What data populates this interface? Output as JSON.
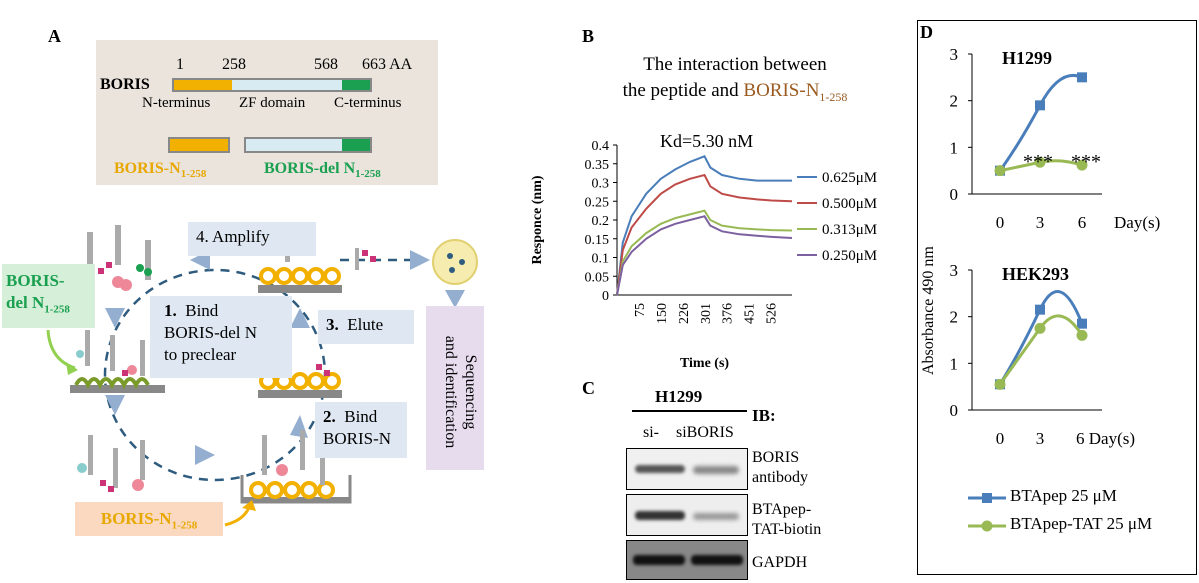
{
  "panelA": {
    "label": "A",
    "boris": {
      "name": "BORIS",
      "pos1": "1",
      "pos258": "258",
      "pos568": "568",
      "pos663": "663 AA",
      "nterm": "N-terminus",
      "zf": "ZF domain",
      "cterm": "C-terminus"
    },
    "frag_n": {
      "base": "BORIS-N",
      "sub": "1-258"
    },
    "frag_del": {
      "base": "BORIS-del N",
      "sub": "1-258"
    },
    "steps": {
      "amplify": "4.  Amplify",
      "bind1_num": "1.",
      "bind1_l1": "Bind",
      "bind1_l2": "BORIS-del N",
      "bind1_l3": "to preclear",
      "elute": "3.  Elute",
      "bind2_num": "2.",
      "bind2_l1": "Bind",
      "bind2_l2": "BORIS-N",
      "seq_l1": "Sequencing",
      "seq_l2": "and identification"
    },
    "side_del": {
      "l1": "BORIS-",
      "l2": "del N",
      "sub": "1-258"
    },
    "side_n": {
      "base": "BORIS-N",
      "sub": "1-258"
    }
  },
  "panelB": {
    "label": "B",
    "title_l1": "The interaction between",
    "title_l2_pre": "the peptide and ",
    "title_l2_colored": "BORIS-N",
    "title_sub": "1-258",
    "kd": "Kd=5.30 nM",
    "ylabel": "Responce (nm)",
    "xlabel": "Time (s)"
  },
  "panelC": {
    "label": "C",
    "cell": "H1299",
    "lane1": "si-",
    "lane2": "siBORIS",
    "ib": "IB:",
    "blot1": {
      "l1": "BORIS",
      "l2": "antibody"
    },
    "blot2": {
      "l1": "BTApep-",
      "l2": "TAT-biotin"
    },
    "blot3": {
      "l1": "GAPDH"
    }
  },
  "panelD": {
    "label": "D",
    "ylabel": "Absorbance 490 nm",
    "top_title": "H1299",
    "bottom_title": "HEK293",
    "stars": "***",
    "xunit": "Day(s)",
    "xunit_bottom": "6 Day(s)",
    "legend1": "BTApep 25 μM",
    "legend2": "BTApep-TAT 25 μM"
  },
  "chart_data": [
    {
      "type": "line",
      "panel": "B",
      "title": "The interaction between the peptide and BORIS-N1-258",
      "xlabel": "Time (s)",
      "ylabel": "Responce (nm)",
      "ylim": [
        0,
        0.4
      ],
      "yticks": [
        "0",
        "0.05",
        "0.1",
        "0.15",
        "0.2",
        "0.25",
        "0.3",
        "0.35",
        "0.4"
      ],
      "xticks": [
        "75",
        "150",
        "226",
        "301",
        "376",
        "451",
        "526"
      ],
      "xlim": [
        0,
        600
      ],
      "grid": false,
      "legend": "right",
      "series": [
        {
          "name": "0.625μM",
          "color": "#4a7ebb",
          "x": [
            0,
            20,
            50,
            100,
            150,
            200,
            250,
            300,
            320,
            360,
            420,
            480,
            530,
            600
          ],
          "values": [
            0,
            0.14,
            0.21,
            0.27,
            0.31,
            0.335,
            0.355,
            0.37,
            0.34,
            0.32,
            0.31,
            0.305,
            0.305,
            0.305
          ]
        },
        {
          "name": "0.500μM",
          "color": "#be4b48",
          "x": [
            0,
            20,
            50,
            100,
            150,
            200,
            250,
            300,
            320,
            360,
            420,
            480,
            530,
            600
          ],
          "values": [
            0,
            0.12,
            0.18,
            0.23,
            0.27,
            0.295,
            0.31,
            0.32,
            0.29,
            0.27,
            0.26,
            0.255,
            0.252,
            0.25
          ]
        },
        {
          "name": "0.313μM",
          "color": "#98b954",
          "x": [
            0,
            20,
            50,
            100,
            150,
            200,
            250,
            300,
            320,
            360,
            420,
            480,
            530,
            600
          ],
          "values": [
            0,
            0.09,
            0.13,
            0.165,
            0.19,
            0.205,
            0.215,
            0.225,
            0.2,
            0.185,
            0.178,
            0.175,
            0.173,
            0.172
          ]
        },
        {
          "name": "0.250μM",
          "color": "#7d60a0",
          "x": [
            0,
            20,
            50,
            100,
            150,
            200,
            250,
            300,
            320,
            360,
            420,
            480,
            530,
            600
          ],
          "values": [
            0,
            0.08,
            0.115,
            0.15,
            0.175,
            0.19,
            0.2,
            0.21,
            0.185,
            0.17,
            0.162,
            0.158,
            0.155,
            0.152
          ]
        }
      ]
    },
    {
      "type": "line",
      "panel": "D-top",
      "title": "H1299",
      "xlabel": "Day(s)",
      "ylabel": "Absorbance 490 nm",
      "ylim": [
        0,
        3
      ],
      "yticks": [
        "0",
        "1",
        "2",
        "3"
      ],
      "xticks": [
        "0",
        "3",
        "6"
      ],
      "categories": [
        "0",
        "3",
        "6"
      ],
      "series": [
        {
          "name": "BTApep 25 μM",
          "color": "#4a7ebb",
          "values": [
            0.5,
            1.9,
            2.5
          ]
        },
        {
          "name": "BTApep-TAT 25 μM",
          "color": "#98b954",
          "values": [
            0.5,
            0.68,
            0.62
          ]
        }
      ]
    },
    {
      "type": "line",
      "panel": "D-bottom",
      "title": "HEK293",
      "xlabel": "Day(s)",
      "ylabel": "Absorbance 490 nm",
      "ylim": [
        0,
        3
      ],
      "yticks": [
        "0",
        "1",
        "2",
        "3"
      ],
      "xticks": [
        "0",
        "3",
        "6"
      ],
      "categories": [
        "0",
        "3",
        "6"
      ],
      "series": [
        {
          "name": "BTApep 25 μM",
          "color": "#4a7ebb",
          "values": [
            0.55,
            2.15,
            1.85
          ]
        },
        {
          "name": "BTApep-TAT 25 μM",
          "color": "#98b954",
          "values": [
            0.55,
            1.75,
            1.6
          ]
        }
      ]
    }
  ]
}
